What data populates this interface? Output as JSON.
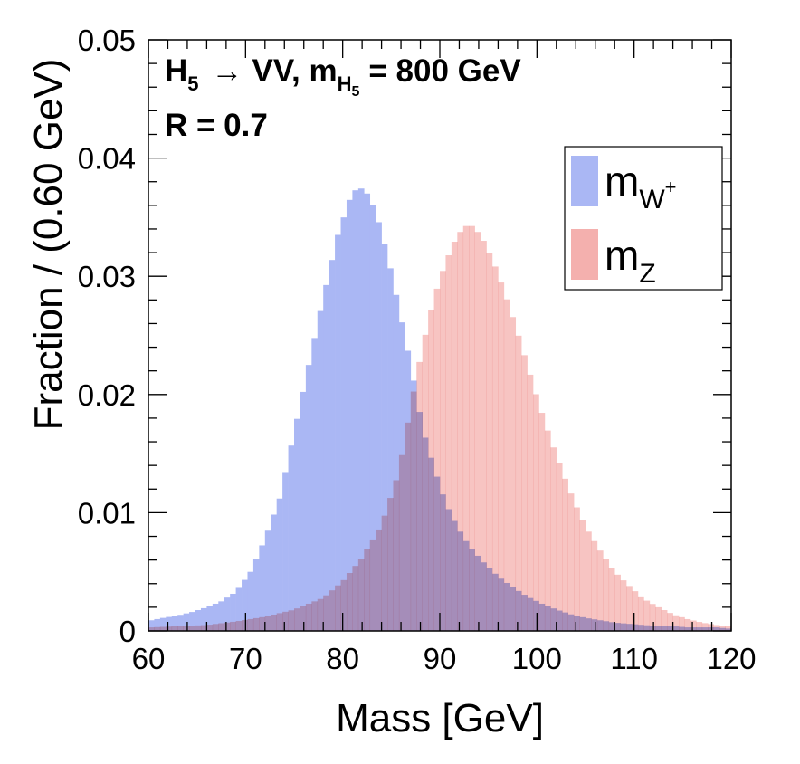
{
  "chart_data": {
    "type": "histogram",
    "xlabel": "Mass [GeV]",
    "ylabel": "Fraction / (0.60 GeV)",
    "xlim": [
      60,
      120
    ],
    "ylim": [
      0,
      0.05
    ],
    "x_ticks": [
      "60",
      "70",
      "80",
      "90",
      "100",
      "110",
      "120"
    ],
    "y_ticks": [
      "0",
      "0.01",
      "0.02",
      "0.03",
      "0.04",
      "0.05"
    ],
    "bin_width": 0.6,
    "annotation": {
      "line1": "H₅ → VV, m_H₅ = 800 GeV",
      "line2": "R = 0.7"
    },
    "legend_position": "top-right",
    "series": [
      {
        "name": "m_W⁺",
        "color": "#aab7f4",
        "centers": [
          60.3,
          61.5,
          63.0,
          64.5,
          66.0,
          67.5,
          69.0,
          70.5,
          72.0,
          73.5,
          75.0,
          76.5,
          78.0,
          79.5,
          81.0,
          82.2,
          83.4,
          84.6,
          85.8,
          87.0,
          88.2,
          89.4,
          90.6,
          91.8,
          93.0,
          94.5,
          96.0,
          97.5,
          99.0,
          100.5,
          102.0,
          103.5,
          105.0,
          106.5,
          108.0,
          109.5,
          111.0,
          112.5,
          114.0,
          115.5,
          117.0,
          118.5,
          119.7
        ],
        "values": [
          0.0009,
          0.0011,
          0.0013,
          0.0016,
          0.002,
          0.0025,
          0.0033,
          0.005,
          0.0078,
          0.0112,
          0.0168,
          0.0225,
          0.0282,
          0.0335,
          0.0372,
          0.0375,
          0.0355,
          0.0318,
          0.0273,
          0.0225,
          0.0172,
          0.0138,
          0.0108,
          0.0088,
          0.0072,
          0.0058,
          0.0046,
          0.0037,
          0.0029,
          0.0023,
          0.0018,
          0.0014,
          0.0011,
          0.0009,
          0.0007,
          0.0006,
          0.0005,
          0.0004,
          0.0004,
          0.0003,
          0.0003,
          0.0003,
          0.0002
        ]
      },
      {
        "name": "m_Z",
        "color": "#f4b0ae",
        "centers": [
          60.3,
          63.0,
          66.0,
          69.0,
          72.0,
          75.0,
          78.0,
          80.0,
          82.0,
          84.0,
          85.8,
          87.0,
          88.2,
          89.4,
          90.6,
          91.8,
          93.0,
          94.2,
          95.4,
          96.6,
          97.8,
          99.0,
          100.2,
          101.4,
          102.6,
          103.8,
          105.0,
          106.5,
          108.0,
          109.5,
          111.0,
          112.5,
          114.0,
          115.5,
          117.0,
          118.5,
          119.7
        ],
        "values": [
          0.0003,
          0.0004,
          0.0005,
          0.0008,
          0.0012,
          0.0018,
          0.0028,
          0.0042,
          0.0062,
          0.009,
          0.0135,
          0.019,
          0.024,
          0.0282,
          0.0312,
          0.0335,
          0.0345,
          0.0335,
          0.0315,
          0.0288,
          0.0258,
          0.0225,
          0.0192,
          0.0162,
          0.0135,
          0.011,
          0.0088,
          0.0068,
          0.005,
          0.0038,
          0.0027,
          0.002,
          0.0014,
          0.001,
          0.0007,
          0.0005,
          0.0004
        ]
      }
    ]
  },
  "annotation_display": {
    "l1_H": "H",
    "l1_sub": "5",
    "l1_arrow": "→",
    "l1_mid": "VV, m",
    "l1_msub": "H",
    "l1_msubsub": "5",
    "l1_tail": "= 800 GeV",
    "l2": "R = 0.7"
  },
  "legend_display": {
    "w_base": "m",
    "w_sub": "W",
    "w_sup": "+",
    "z_base": "m",
    "z_sub": "Z"
  }
}
